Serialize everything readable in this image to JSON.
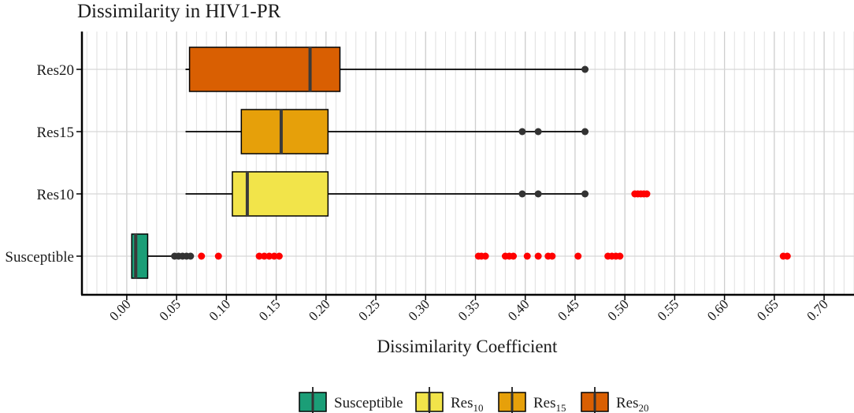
{
  "chart_data": {
    "type": "boxplot",
    "title": "Dissimilarity in HIV1-PR",
    "xlabel": "Dissimilarity Coefficient",
    "ylabel": "",
    "xlim": [
      -0.045,
      0.73
    ],
    "x_ticks": [
      "0.00",
      "0.05",
      "0.10",
      "0.15",
      "0.20",
      "0.25",
      "0.30",
      "0.35",
      "0.40",
      "0.45",
      "0.50",
      "0.55",
      "0.60",
      "0.65",
      "0.70"
    ],
    "x_tick_values": [
      0.0,
      0.05,
      0.1,
      0.15,
      0.2,
      0.25,
      0.3,
      0.35,
      0.4,
      0.45,
      0.5,
      0.55,
      0.6,
      0.65,
      0.7
    ],
    "minor_grid_step": 0.01,
    "categories": [
      "Res20",
      "Res15",
      "Res10",
      "Susceptible"
    ],
    "series": [
      {
        "name": "Res20",
        "color": "#d95f02",
        "whisker_low": 0.059,
        "q1": 0.063,
        "median": 0.184,
        "q3": 0.214,
        "whisker_high": 0.46,
        "outliers": [
          0.46
        ],
        "highlight_points": []
      },
      {
        "name": "Res15",
        "color": "#e6a00a",
        "whisker_low": 0.059,
        "q1": 0.115,
        "median": 0.155,
        "q3": 0.202,
        "whisker_high": 0.46,
        "outliers": [
          0.397,
          0.413,
          0.46
        ],
        "highlight_points": []
      },
      {
        "name": "Res10",
        "color": "#f2e44a",
        "whisker_low": 0.059,
        "q1": 0.106,
        "median": 0.121,
        "q3": 0.202,
        "whisker_high": 0.46,
        "outliers": [
          0.397,
          0.413,
          0.46
        ],
        "highlight_points": [
          0.51,
          0.513,
          0.516,
          0.519,
          0.522
        ]
      },
      {
        "name": "Susceptible",
        "color": "#1b9e77",
        "whisker_low": 0.005,
        "q1": 0.005,
        "median": 0.009,
        "q3": 0.021,
        "whisker_high": 0.045,
        "outliers": [
          0.048,
          0.052,
          0.056,
          0.06,
          0.064
        ],
        "highlight_points": [
          0.075,
          0.092,
          0.133,
          0.138,
          0.143,
          0.148,
          0.153,
          0.353,
          0.356,
          0.36,
          0.38,
          0.384,
          0.388,
          0.402,
          0.413,
          0.423,
          0.427,
          0.453,
          0.483,
          0.487,
          0.491,
          0.495,
          0.659,
          0.663
        ]
      }
    ],
    "outlier_color": "#333333",
    "highlight_color": "#ff0000",
    "legend": {
      "position": "bottom",
      "items": [
        {
          "name": "Susceptible",
          "label": "Susceptible",
          "sub": "",
          "color": "#1b9e77"
        },
        {
          "name": "Res10",
          "label": "Res",
          "sub": "10",
          "color": "#f2e44a"
        },
        {
          "name": "Res15",
          "label": "Res",
          "sub": "15",
          "color": "#e6a00a"
        },
        {
          "name": "Res20",
          "label": "Res",
          "sub": "20",
          "color": "#d95f02"
        }
      ]
    }
  }
}
